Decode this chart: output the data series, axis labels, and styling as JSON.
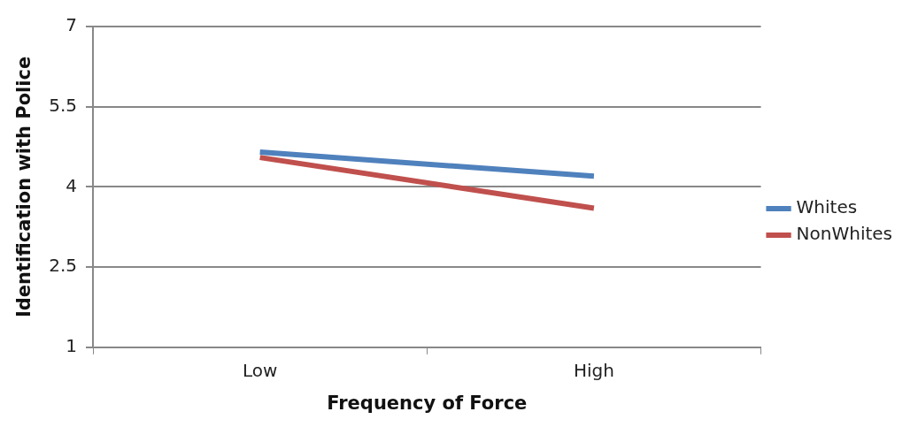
{
  "chart_data": {
    "type": "line",
    "xlabel": "Frequency of Force",
    "ylabel": "Identification with Police",
    "categories": [
      "Low",
      "High"
    ],
    "series": [
      {
        "name": "Whites",
        "color": "#4f81bd",
        "values": [
          4.65,
          4.2
        ]
      },
      {
        "name": "NonWhites",
        "color": "#c0504d",
        "values": [
          4.55,
          3.6
        ]
      }
    ],
    "ylim": [
      1,
      7
    ],
    "yticks": [
      1,
      2.5,
      4,
      5.5,
      7
    ],
    "grid": "y",
    "legend": "right",
    "marker": "none",
    "line_style": "solid"
  }
}
